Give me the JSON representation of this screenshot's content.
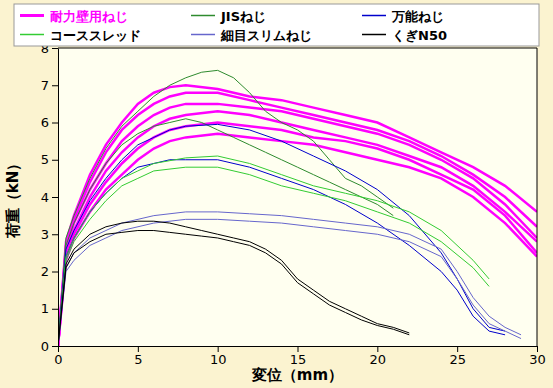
{
  "chart_data": {
    "type": "line",
    "x_label": "変位（mm）",
    "y_label": "荷重（kN）",
    "xlim": [
      0,
      30
    ],
    "ylim": [
      0,
      8
    ],
    "xticks": [
      0,
      5,
      10,
      15,
      20,
      25,
      30
    ],
    "yticks": [
      0,
      1,
      2,
      3,
      4,
      5,
      6,
      7,
      8
    ],
    "legend": "top",
    "series": [
      {
        "name": "耐力壁用ねじ",
        "color": "#ff00ff",
        "curves": [
          {
            "x": [
              0,
              0.5,
              1,
              2,
              3,
              4,
              5,
              6,
              7,
              8,
              10,
              12,
              14,
              16,
              18,
              20,
              22,
              24,
              26,
              28,
              30
            ],
            "values": [
              0,
              2.8,
              3.5,
              4.6,
              5.4,
              6.0,
              6.5,
              6.8,
              6.95,
              7.0,
              6.9,
              6.7,
              6.6,
              6.4,
              6.2,
              6.0,
              5.6,
              5.2,
              4.8,
              4.3,
              3.6
            ]
          },
          {
            "x": [
              0,
              0.5,
              1,
              2,
              3,
              4,
              5,
              6,
              7,
              8,
              10,
              12,
              14,
              16,
              18,
              20,
              22,
              24,
              26,
              28,
              30
            ],
            "values": [
              0,
              2.7,
              3.4,
              4.4,
              5.2,
              5.8,
              6.2,
              6.5,
              6.7,
              6.8,
              6.8,
              6.6,
              6.4,
              6.2,
              6.0,
              5.8,
              5.5,
              5.1,
              4.6,
              4.0,
              3.2
            ]
          },
          {
            "x": [
              0,
              0.5,
              1,
              2,
              3,
              4,
              5,
              6,
              7,
              8,
              10,
              12,
              14,
              16,
              18,
              20,
              22,
              24,
              26,
              28,
              30
            ],
            "values": [
              0,
              2.6,
              3.3,
              4.2,
              4.9,
              5.5,
              5.9,
              6.2,
              6.4,
              6.5,
              6.5,
              6.4,
              6.3,
              6.1,
              5.9,
              5.7,
              5.4,
              5.0,
              4.5,
              3.8,
              2.9
            ]
          },
          {
            "x": [
              0,
              0.5,
              1,
              2,
              3,
              4,
              5,
              6,
              7,
              8,
              10,
              12,
              14,
              16,
              18,
              20,
              22,
              24,
              26,
              28,
              30
            ],
            "values": [
              0,
              2.5,
              3.1,
              4.0,
              4.7,
              5.2,
              5.6,
              5.9,
              6.1,
              6.2,
              6.3,
              6.2,
              6.0,
              5.8,
              5.6,
              5.4,
              5.1,
              4.8,
              4.3,
              3.6,
              2.8
            ]
          },
          {
            "x": [
              0,
              0.5,
              1,
              2,
              3,
              4,
              5,
              6,
              7,
              8,
              10,
              12,
              14,
              16,
              18,
              20,
              22,
              24,
              26,
              28,
              30
            ],
            "values": [
              0,
              2.4,
              3.0,
              3.8,
              4.4,
              4.9,
              5.3,
              5.6,
              5.8,
              5.9,
              6.0,
              5.9,
              5.8,
              5.6,
              5.5,
              5.3,
              5.0,
              4.6,
              4.2,
              3.5,
              2.5
            ]
          },
          {
            "x": [
              0,
              0.5,
              1,
              2,
              3,
              4,
              5,
              6,
              7,
              8,
              10,
              12,
              14,
              16,
              18,
              20,
              22,
              24,
              26,
              28,
              30
            ],
            "values": [
              0,
              2.3,
              2.9,
              3.6,
              4.2,
              4.6,
              5.0,
              5.3,
              5.5,
              5.6,
              5.7,
              5.6,
              5.5,
              5.4,
              5.2,
              5.0,
              4.8,
              4.5,
              4.0,
              3.3,
              2.4
            ]
          }
        ]
      },
      {
        "name": "JISねじ",
        "color": "#2e8b2e",
        "curves": [
          {
            "x": [
              0,
              0.5,
              1,
              2,
              3,
              4,
              5,
              6,
              7,
              8,
              9,
              10,
              11,
              12,
              13,
              14,
              15,
              16,
              17,
              18,
              19,
              20,
              21
            ],
            "values": [
              0,
              2.9,
              3.5,
              4.5,
              5.3,
              5.9,
              6.3,
              6.7,
              7.0,
              7.2,
              7.35,
              7.4,
              7.2,
              6.8,
              6.3,
              6.0,
              5.8,
              5.5,
              5.0,
              4.5,
              4.3,
              4.0,
              3.7
            ]
          },
          {
            "x": [
              0,
              0.5,
              1,
              2,
              3,
              4,
              5,
              6,
              7,
              8,
              9,
              10,
              11,
              12,
              13,
              14,
              15,
              16,
              17,
              18,
              19,
              20,
              21
            ],
            "values": [
              0,
              2.7,
              3.3,
              4.2,
              4.9,
              5.4,
              5.7,
              5.9,
              6.0,
              6.1,
              6.0,
              5.8,
              5.6,
              5.4,
              5.2,
              5.0,
              4.8,
              4.6,
              4.4,
              4.2,
              4.0,
              3.8,
              3.5
            ]
          }
        ]
      },
      {
        "name": "万能ねじ",
        "color": "#0000cc",
        "curves": [
          {
            "x": [
              0,
              0.5,
              1,
              2,
              3,
              4,
              5,
              6,
              7,
              8,
              10,
              12,
              14,
              16,
              18,
              20,
              22,
              24,
              25,
              26,
              27,
              28
            ],
            "values": [
              0,
              2.6,
              3.1,
              3.9,
              4.5,
              5.0,
              5.4,
              5.6,
              5.8,
              5.9,
              5.95,
              5.8,
              5.5,
              5.1,
              4.7,
              4.2,
              3.5,
              2.5,
              1.8,
              1.0,
              0.5,
              0.4
            ]
          },
          {
            "x": [
              0,
              0.5,
              1,
              2,
              3,
              4,
              5,
              6,
              7,
              8,
              10,
              12,
              14,
              16,
              18,
              20,
              22,
              24,
              25,
              26,
              27,
              28
            ],
            "values": [
              0,
              2.4,
              2.9,
              3.6,
              4.1,
              4.5,
              4.8,
              4.9,
              5.0,
              5.0,
              5.0,
              4.8,
              4.5,
              4.2,
              3.8,
              3.3,
              2.7,
              2.0,
              1.5,
              0.8,
              0.4,
              0.3
            ]
          }
        ]
      },
      {
        "name": "コーススレッド",
        "color": "#33cc33",
        "curves": [
          {
            "x": [
              0,
              0.5,
              1,
              2,
              3,
              4,
              5,
              6,
              8,
              10,
              12,
              14,
              16,
              18,
              20,
              22,
              24,
              26,
              27
            ],
            "values": [
              0,
              2.4,
              2.9,
              3.6,
              4.1,
              4.5,
              4.7,
              4.9,
              5.05,
              5.1,
              4.9,
              4.6,
              4.3,
              4.1,
              3.9,
              3.6,
              3.1,
              2.3,
              1.8
            ]
          },
          {
            "x": [
              0,
              0.5,
              1,
              2,
              3,
              4,
              5,
              6,
              8,
              10,
              12,
              14,
              16,
              18,
              20,
              22,
              24,
              26,
              27
            ],
            "values": [
              0,
              2.3,
              2.8,
              3.4,
              3.9,
              4.3,
              4.5,
              4.7,
              4.8,
              4.8,
              4.6,
              4.3,
              4.1,
              3.9,
              3.6,
              3.3,
              2.8,
              2.1,
              1.6
            ]
          }
        ]
      },
      {
        "name": "細目スリムねじ",
        "color": "#6666cc",
        "curves": [
          {
            "x": [
              0,
              0.5,
              1,
              2,
              3,
              4,
              6,
              8,
              10,
              12,
              14,
              16,
              18,
              20,
              22,
              24,
              25,
              26,
              27,
              28,
              29
            ],
            "values": [
              0,
              2.1,
              2.5,
              2.9,
              3.1,
              3.3,
              3.5,
              3.6,
              3.6,
              3.55,
              3.5,
              3.4,
              3.3,
              3.2,
              3.0,
              2.6,
              2.0,
              1.3,
              0.8,
              0.5,
              0.3
            ]
          },
          {
            "x": [
              0,
              0.5,
              1,
              2,
              3,
              4,
              6,
              8,
              10,
              12,
              14,
              16,
              18,
              20,
              22,
              24,
              25,
              26,
              27,
              28,
              29
            ],
            "values": [
              0,
              2.0,
              2.3,
              2.7,
              2.9,
              3.1,
              3.3,
              3.4,
              3.4,
              3.35,
              3.3,
              3.2,
              3.1,
              3.0,
              2.8,
              2.4,
              1.8,
              1.1,
              0.6,
              0.4,
              0.2
            ]
          }
        ]
      },
      {
        "name": "くぎN50",
        "color": "#000000",
        "curves": [
          {
            "x": [
              0,
              0.5,
              1,
              2,
              3,
              4,
              5,
              6,
              7,
              8,
              9,
              10,
              11,
              12,
              13,
              14,
              15,
              16,
              17,
              18,
              19,
              20,
              21,
              22
            ],
            "values": [
              0,
              2.2,
              2.6,
              3.0,
              3.2,
              3.3,
              3.35,
              3.35,
              3.3,
              3.2,
              3.1,
              3.0,
              2.9,
              2.8,
              2.6,
              2.3,
              1.8,
              1.5,
              1.2,
              1.0,
              0.8,
              0.6,
              0.5,
              0.35
            ]
          },
          {
            "x": [
              0,
              0.5,
              1,
              2,
              3,
              4,
              5,
              6,
              7,
              8,
              9,
              10,
              11,
              12,
              13,
              14,
              15,
              16,
              17,
              18,
              19,
              20,
              21,
              22
            ],
            "values": [
              0,
              2.1,
              2.5,
              2.8,
              3.0,
              3.05,
              3.1,
              3.1,
              3.05,
              3.0,
              2.95,
              2.9,
              2.8,
              2.7,
              2.5,
              2.2,
              1.7,
              1.4,
              1.1,
              0.9,
              0.7,
              0.55,
              0.45,
              0.3
            ]
          }
        ]
      }
    ]
  }
}
